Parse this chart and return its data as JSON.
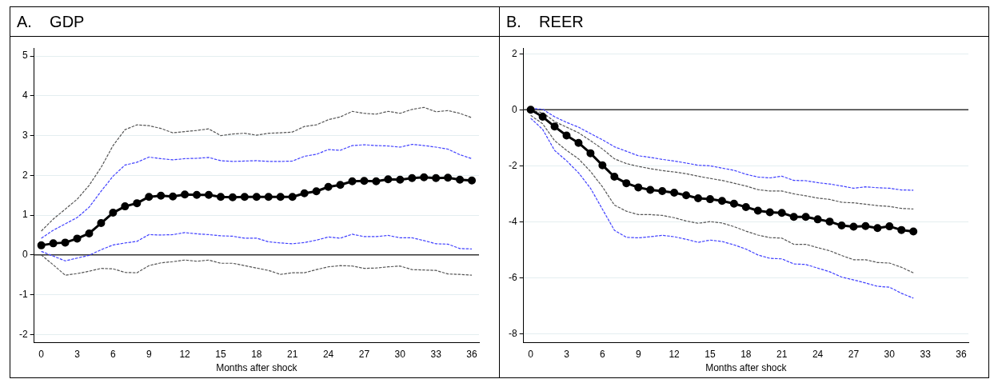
{
  "chart_data": [
    {
      "type": "line",
      "title": "A.    GDP",
      "xlabel": "Months after shock",
      "x": [
        0,
        1,
        2,
        3,
        4,
        5,
        6,
        7,
        8,
        9,
        10,
        11,
        12,
        13,
        14,
        15,
        16,
        17,
        18,
        19,
        20,
        21,
        22,
        23,
        24,
        25,
        26,
        27,
        28,
        29,
        30,
        31,
        32,
        33,
        34,
        35,
        36
      ],
      "xlim": [
        -0.6,
        36.6
      ],
      "xticks": [
        0,
        3,
        6,
        9,
        12,
        15,
        18,
        21,
        24,
        27,
        30,
        33,
        36
      ],
      "ylim": [
        -2.2,
        5.2
      ],
      "yticks": [
        -2,
        -1,
        0,
        1,
        2,
        3,
        4,
        5
      ],
      "grid": "y",
      "ref_lines": [
        {
          "axis": "y",
          "value": 0,
          "color": "#333333"
        }
      ],
      "series": [
        {
          "color": "#555555",
          "line_style": "dashed",
          "marker": "none",
          "values": [
            0.6,
            0.9,
            1.15,
            1.4,
            1.75,
            2.2,
            2.75,
            3.15,
            3.27,
            3.25,
            3.18,
            3.07,
            3.1,
            3.13,
            3.17,
            3.0,
            3.04,
            3.06,
            3.01,
            3.06,
            3.07,
            3.09,
            3.23,
            3.27,
            3.4,
            3.47,
            3.61,
            3.56,
            3.54,
            3.61,
            3.56,
            3.66,
            3.71,
            3.6,
            3.63,
            3.56,
            3.45
          ]
        },
        {
          "color": "#4040ff",
          "line_style": "dashed",
          "marker": "none",
          "values": [
            0.42,
            0.62,
            0.78,
            0.94,
            1.2,
            1.6,
            1.98,
            2.26,
            2.33,
            2.46,
            2.42,
            2.39,
            2.42,
            2.43,
            2.45,
            2.37,
            2.35,
            2.36,
            2.37,
            2.35,
            2.35,
            2.36,
            2.48,
            2.53,
            2.65,
            2.63,
            2.75,
            2.77,
            2.75,
            2.74,
            2.71,
            2.78,
            2.75,
            2.71,
            2.66,
            2.52,
            2.42
          ]
        },
        {
          "color": "#000000",
          "line_style": "solid",
          "marker": "circle",
          "values": [
            0.24,
            0.29,
            0.31,
            0.41,
            0.54,
            0.8,
            1.06,
            1.22,
            1.3,
            1.46,
            1.49,
            1.47,
            1.52,
            1.51,
            1.51,
            1.46,
            1.45,
            1.46,
            1.46,
            1.46,
            1.46,
            1.46,
            1.55,
            1.6,
            1.71,
            1.76,
            1.85,
            1.86,
            1.85,
            1.9,
            1.89,
            1.93,
            1.95,
            1.93,
            1.94,
            1.89,
            1.87
          ]
        },
        {
          "color": "#4040ff",
          "line_style": "dashed",
          "marker": "none",
          "values": [
            0.09,
            -0.03,
            -0.15,
            -0.08,
            -0.01,
            0.13,
            0.25,
            0.3,
            0.34,
            0.51,
            0.5,
            0.51,
            0.56,
            0.53,
            0.51,
            0.48,
            0.47,
            0.42,
            0.42,
            0.33,
            0.3,
            0.28,
            0.31,
            0.37,
            0.45,
            0.42,
            0.52,
            0.46,
            0.46,
            0.49,
            0.43,
            0.43,
            0.36,
            0.28,
            0.27,
            0.16,
            0.15
          ]
        },
        {
          "color": "#555555",
          "line_style": "dashed",
          "marker": "none",
          "values": [
            0.0,
            -0.25,
            -0.51,
            -0.47,
            -0.41,
            -0.34,
            -0.35,
            -0.44,
            -0.45,
            -0.27,
            -0.2,
            -0.17,
            -0.13,
            -0.16,
            -0.13,
            -0.21,
            -0.21,
            -0.27,
            -0.33,
            -0.39,
            -0.49,
            -0.45,
            -0.45,
            -0.37,
            -0.3,
            -0.27,
            -0.28,
            -0.34,
            -0.33,
            -0.3,
            -0.28,
            -0.37,
            -0.38,
            -0.39,
            -0.48,
            -0.49,
            -0.51
          ]
        }
      ]
    },
    {
      "type": "line",
      "title": "B.    REER",
      "xlabel": "Months after shock",
      "x": [
        0,
        1,
        2,
        3,
        4,
        5,
        6,
        7,
        8,
        9,
        10,
        11,
        12,
        13,
        14,
        15,
        16,
        17,
        18,
        19,
        20,
        21,
        22,
        23,
        24,
        25,
        26,
        27,
        28,
        29,
        30,
        31,
        32
      ],
      "xlim": [
        -0.6,
        36.6
      ],
      "xticks": [
        0,
        3,
        6,
        9,
        12,
        15,
        18,
        21,
        24,
        27,
        30,
        33,
        36
      ],
      "ylim": [
        -8.3,
        2.2
      ],
      "yticks": [
        -8,
        -6,
        -4,
        -2,
        0,
        2
      ],
      "grid": "y",
      "ref_lines": [
        {
          "axis": "y",
          "value": 0,
          "color": "#333333"
        }
      ],
      "series": [
        {
          "color": "#4040ff",
          "line_style": "dashed",
          "marker": "none",
          "values": [
            0.05,
            0.02,
            -0.25,
            -0.45,
            -0.62,
            -0.85,
            -1.07,
            -1.32,
            -1.48,
            -1.64,
            -1.7,
            -1.77,
            -1.83,
            -1.9,
            -1.98,
            -2.0,
            -2.08,
            -2.16,
            -2.3,
            -2.4,
            -2.43,
            -2.37,
            -2.52,
            -2.53,
            -2.6,
            -2.65,
            -2.72,
            -2.8,
            -2.75,
            -2.78,
            -2.8,
            -2.86,
            -2.87
          ]
        },
        {
          "color": "#555555",
          "line_style": "dashed",
          "marker": "none",
          "values": [
            -0.03,
            -0.1,
            -0.42,
            -0.62,
            -0.82,
            -1.1,
            -1.4,
            -1.75,
            -1.92,
            -2.02,
            -2.1,
            -2.17,
            -2.22,
            -2.28,
            -2.37,
            -2.45,
            -2.52,
            -2.62,
            -2.72,
            -2.85,
            -2.9,
            -2.9,
            -3.0,
            -3.07,
            -3.15,
            -3.2,
            -3.3,
            -3.32,
            -3.37,
            -3.42,
            -3.45,
            -3.52,
            -3.54
          ]
        },
        {
          "color": "#000000",
          "line_style": "solid",
          "marker": "circle",
          "values": [
            0,
            -0.25,
            -0.6,
            -0.92,
            -1.18,
            -1.55,
            -1.98,
            -2.39,
            -2.62,
            -2.77,
            -2.86,
            -2.9,
            -2.96,
            -3.05,
            -3.16,
            -3.19,
            -3.25,
            -3.35,
            -3.47,
            -3.6,
            -3.66,
            -3.68,
            -3.82,
            -3.82,
            -3.91,
            -3.99,
            -4.13,
            -4.17,
            -4.15,
            -4.22,
            -4.16,
            -4.29,
            -4.34
          ]
        },
        {
          "color": "#555555",
          "line_style": "dashed",
          "marker": "none",
          "values": [
            -0.2,
            -0.5,
            -1.1,
            -1.45,
            -1.75,
            -2.2,
            -2.75,
            -3.4,
            -3.62,
            -3.74,
            -3.74,
            -3.77,
            -3.85,
            -3.97,
            -4.05,
            -3.99,
            -4.04,
            -4.17,
            -4.33,
            -4.47,
            -4.56,
            -4.58,
            -4.8,
            -4.8,
            -4.92,
            -5.03,
            -5.2,
            -5.35,
            -5.35,
            -5.45,
            -5.47,
            -5.62,
            -5.82
          ]
        },
        {
          "color": "#4040ff",
          "line_style": "dashed",
          "marker": "none",
          "values": [
            -0.3,
            -0.7,
            -1.45,
            -1.82,
            -2.25,
            -2.8,
            -3.55,
            -4.3,
            -4.55,
            -4.57,
            -4.53,
            -4.48,
            -4.53,
            -4.62,
            -4.73,
            -4.65,
            -4.7,
            -4.82,
            -4.97,
            -5.18,
            -5.3,
            -5.32,
            -5.5,
            -5.52,
            -5.65,
            -5.78,
            -5.97,
            -6.07,
            -6.18,
            -6.3,
            -6.33,
            -6.55,
            -6.72
          ]
        }
      ]
    }
  ]
}
